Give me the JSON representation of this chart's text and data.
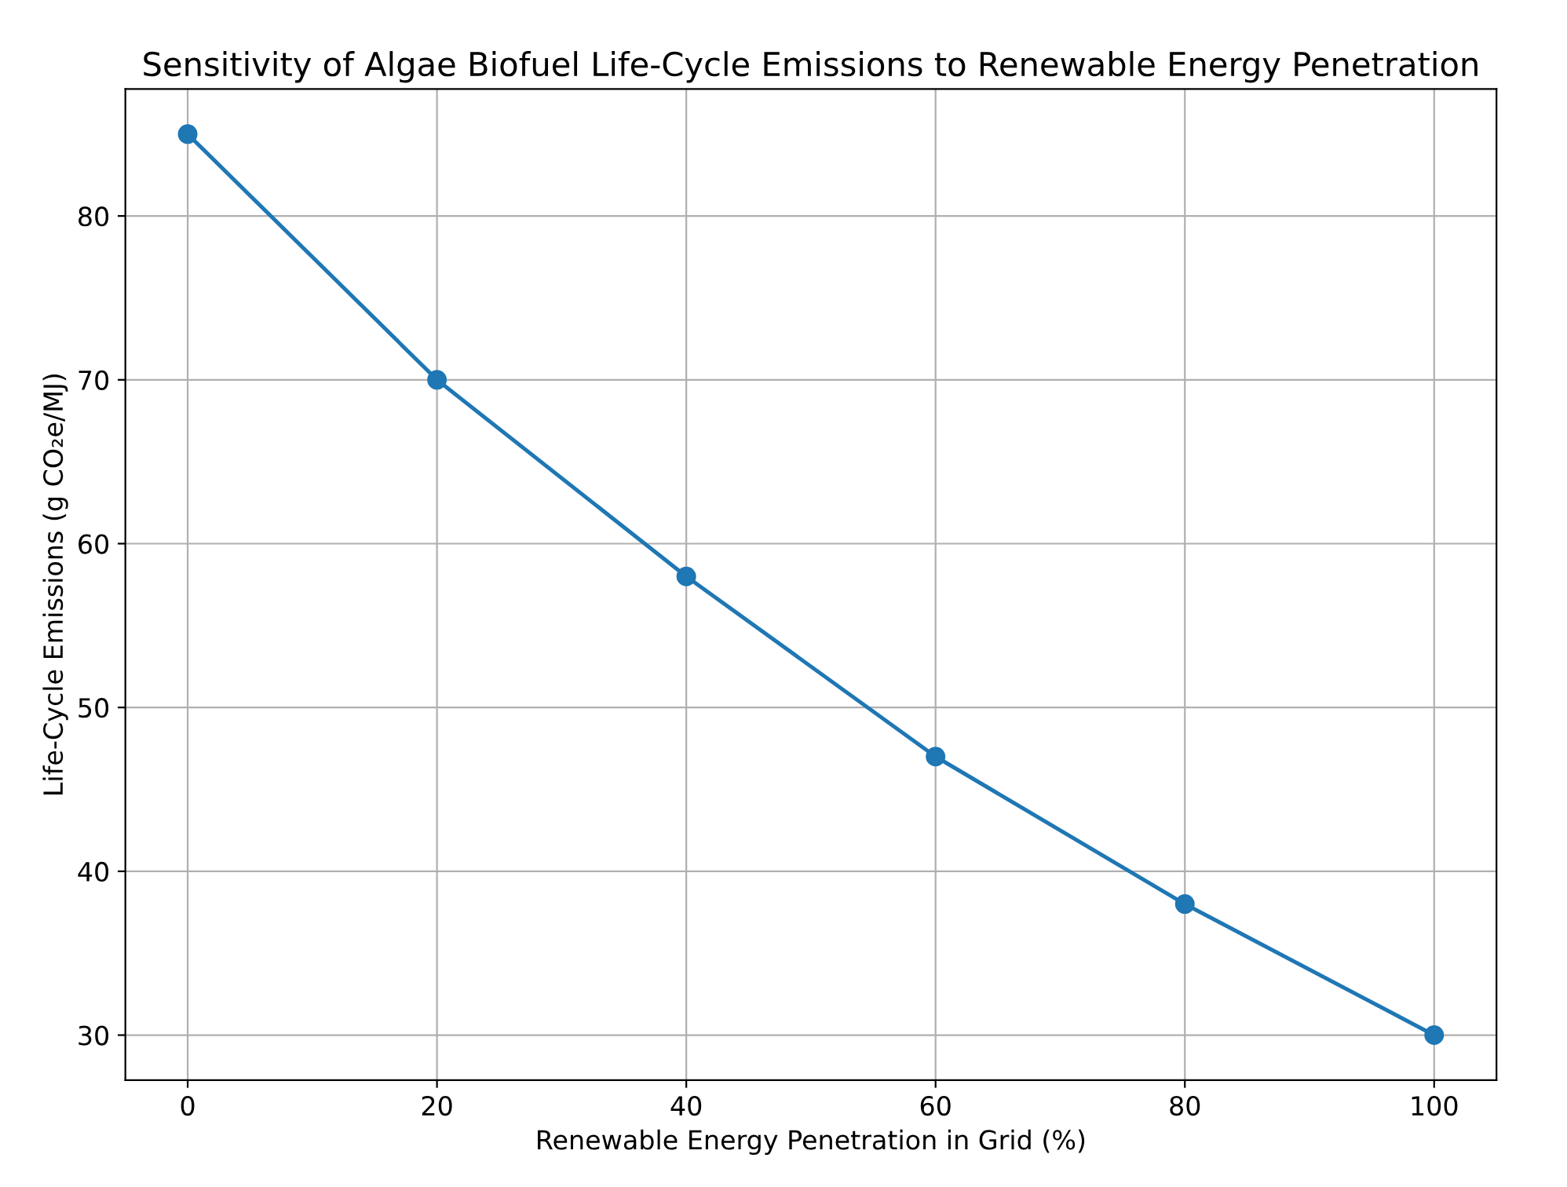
{
  "chart_data": {
    "type": "line",
    "title": "Sensitivity of Algae Biofuel Life-Cycle Emissions to Renewable Energy Penetration",
    "xlabel": "Renewable Energy Penetration in Grid (%)",
    "ylabel": "Life-Cycle Emissions (g CO₂e/MJ)",
    "x": [
      0,
      20,
      40,
      60,
      80,
      100
    ],
    "series": [
      {
        "color": "#1f77b4",
        "values": [
          85,
          70,
          58,
          47,
          38,
          30
        ]
      }
    ],
    "xlim": [
      -5,
      105
    ],
    "xticks": [
      0,
      20,
      40,
      60,
      80,
      100
    ],
    "ylim": [
      27.25,
      87.75
    ],
    "yticks": [
      30,
      40,
      50,
      60,
      70,
      80
    ],
    "grid": true,
    "marker": "circle",
    "line_style": "solid"
  }
}
